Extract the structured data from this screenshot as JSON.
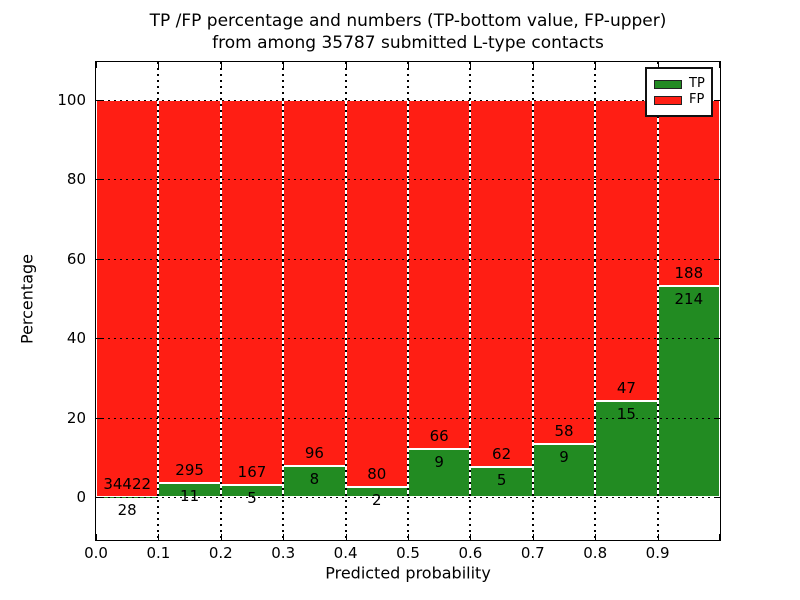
{
  "chart_data": {
    "type": "bar",
    "stacked": true,
    "normalized_to_percent": true,
    "title_line1": "TP /FP percentage and numbers (TP-bottom value, FP-upper)",
    "title_line2": "from among 35787 submitted L-type contacts",
    "total_submitted": 35787,
    "xlabel": "Predicted probability",
    "ylabel": "Percentage",
    "x_tick_labels": [
      "0.0",
      "0.1",
      "0.2",
      "0.3",
      "0.4",
      "0.5",
      "0.6",
      "0.7",
      "0.8",
      "0.9"
    ],
    "y_tick_labels": [
      "0",
      "20",
      "40",
      "60",
      "80",
      "100"
    ],
    "y_tick_values": [
      0,
      20,
      40,
      60,
      80,
      100
    ],
    "xlim": [
      0.0,
      1.0
    ],
    "ylim_display": [
      0,
      100
    ],
    "grid": "dotted",
    "bin_starts": [
      0.0,
      0.1,
      0.2,
      0.3,
      0.4,
      0.5,
      0.6,
      0.7,
      0.8,
      0.9
    ],
    "bin_width": 0.1,
    "series": [
      {
        "name": "TP",
        "color": "#228b22",
        "counts": [
          28,
          11,
          5,
          8,
          2,
          9,
          5,
          9,
          15,
          214
        ]
      },
      {
        "name": "FP",
        "color": "#ff1e14",
        "counts": [
          34422,
          295,
          167,
          96,
          80,
          66,
          62,
          58,
          47,
          188
        ]
      }
    ],
    "tp_percent": [
      0.08,
      3.59,
      2.91,
      7.69,
      2.44,
      12.0,
      7.46,
      13.43,
      24.19,
      53.23
    ],
    "legend": {
      "position": "upper right",
      "items": [
        {
          "label": "TP",
          "color": "#228b22"
        },
        {
          "label": "FP",
          "color": "#ff1e14"
        }
      ]
    },
    "colors": {
      "tp_green": "#228b22",
      "fp_red": "#ff1e14",
      "grid": "#000000",
      "frame": "#000000"
    }
  }
}
